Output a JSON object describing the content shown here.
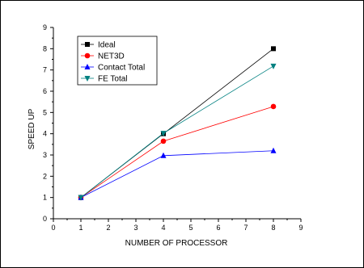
{
  "chart_data": {
    "type": "line",
    "xlabel": "NUMBER OF PROCESSOR",
    "ylabel": "SPEED UP",
    "xlim": [
      0,
      9
    ],
    "ylim": [
      0,
      9
    ],
    "xticks": [
      "0",
      "1",
      "2",
      "3",
      "4",
      "5",
      "6",
      "7",
      "8",
      "9"
    ],
    "yticks": [
      "0",
      "1",
      "2",
      "3",
      "4",
      "5",
      "6",
      "7",
      "8",
      "9"
    ],
    "legend_position": "top-left",
    "grid": false,
    "x": [
      1,
      4,
      8
    ],
    "series": [
      {
        "name": "Ideal",
        "values": [
          1,
          4,
          8
        ],
        "color": "#000000",
        "marker": "square"
      },
      {
        "name": "NET3D",
        "values": [
          1,
          3.65,
          5.28
        ],
        "color": "#ff0000",
        "marker": "circle"
      },
      {
        "name": "Contact Total",
        "values": [
          1,
          2.97,
          3.2
        ],
        "color": "#0000ff",
        "marker": "triangle-up"
      },
      {
        "name": "FE Total",
        "values": [
          1,
          4.02,
          7.18
        ],
        "color": "#008080",
        "marker": "triangle-down"
      }
    ]
  }
}
